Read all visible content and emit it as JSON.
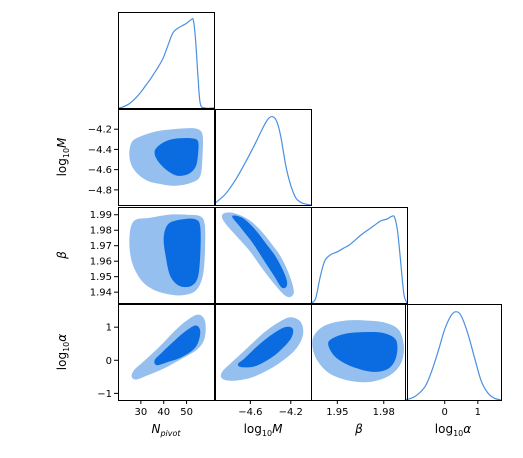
{
  "chart_data": {
    "type": "corner",
    "parameters": [
      {
        "key": "Npivot",
        "label_main": "N",
        "label_sub": "pivot",
        "label_style": "italic",
        "range": [
          20,
          62
        ],
        "ticks": [
          30,
          40,
          50
        ],
        "tick_labels": [
          "30",
          "40",
          "50"
        ]
      },
      {
        "key": "log10M",
        "label_main": "log",
        "label_sub": "10",
        "label_tail": "M",
        "range": [
          -4.95,
          -4.0
        ],
        "ticks": [
          -4.8,
          -4.6,
          -4.4,
          -4.2
        ],
        "tick_labels": [
          "−4.8",
          "−4.6",
          "−4.4",
          "−4.2"
        ],
        "x_ticks": [
          -4.6,
          -4.2
        ],
        "x_tick_labels": [
          "−4.6",
          "−4.2"
        ]
      },
      {
        "key": "beta",
        "label_main": "β",
        "label_style": "italic",
        "range": [
          1.933,
          1.995
        ],
        "ticks": [
          1.94,
          1.95,
          1.96,
          1.97,
          1.98,
          1.99
        ],
        "tick_labels": [
          "1.94",
          "1.95",
          "1.96",
          "1.97",
          "1.98",
          "1.99"
        ],
        "x_ticks": [
          1.95,
          1.98
        ],
        "x_tick_labels": [
          "1.95",
          "1.98"
        ]
      },
      {
        "key": "log10alpha",
        "label_main": "log",
        "label_sub": "10",
        "label_tail": "α",
        "range": [
          -1.2,
          1.7
        ],
        "ticks": [
          -1,
          0,
          1
        ],
        "tick_labels": [
          "−1",
          "0",
          "1"
        ],
        "x_ticks": [
          0,
          1
        ],
        "x_tick_labels": [
          "0",
          "1"
        ]
      }
    ],
    "colors": {
      "inner_contour": "#0a6ce0",
      "outer_contour": "#94bfef",
      "line": "#4a90e2",
      "frame": "#000000"
    },
    "marginals": [
      {
        "param": "Npivot",
        "x": [
          20,
          22,
          25,
          28,
          30,
          32,
          34,
          36,
          38,
          40,
          42,
          44,
          46,
          48,
          50,
          52,
          53,
          54,
          55,
          56,
          58,
          62
        ],
        "y": [
          0,
          0.01,
          0.05,
          0.12,
          0.18,
          0.25,
          0.32,
          0.4,
          0.48,
          0.58,
          0.72,
          0.85,
          0.9,
          0.93,
          0.96,
          1.0,
          0.99,
          0.75,
          0.35,
          0.05,
          0,
          0
        ]
      },
      {
        "param": "log10M",
        "x": [
          -4.95,
          -4.85,
          -4.75,
          -4.65,
          -4.55,
          -4.5,
          -4.45,
          -4.42,
          -4.38,
          -4.34,
          -4.3,
          -4.25,
          -4.2,
          -4.15,
          -4.1,
          -4.05,
          -4.0
        ],
        "y": [
          0.02,
          0.12,
          0.28,
          0.48,
          0.7,
          0.82,
          0.93,
          0.98,
          1.0,
          0.95,
          0.78,
          0.45,
          0.22,
          0.08,
          0.03,
          0.01,
          0
        ]
      },
      {
        "param": "beta",
        "x": [
          1.933,
          1.936,
          1.939,
          1.942,
          1.946,
          1.95,
          1.954,
          1.958,
          1.962,
          1.966,
          1.97,
          1.974,
          1.978,
          1.982,
          1.985,
          1.987,
          1.989,
          1.991,
          1.993,
          1.995
        ],
        "y": [
          0,
          0.05,
          0.3,
          0.48,
          0.55,
          0.58,
          0.62,
          0.66,
          0.72,
          0.78,
          0.83,
          0.88,
          0.93,
          0.95,
          0.98,
          0.97,
          0.8,
          0.45,
          0.1,
          0
        ]
      },
      {
        "param": "log10alpha",
        "x": [
          -1.2,
          -0.9,
          -0.6,
          -0.4,
          -0.2,
          0,
          0.2,
          0.35,
          0.5,
          0.7,
          0.9,
          1.1,
          1.3,
          1.5,
          1.7
        ],
        "y": [
          0.0,
          0.04,
          0.15,
          0.32,
          0.55,
          0.8,
          0.96,
          1.0,
          0.95,
          0.75,
          0.48,
          0.22,
          0.08,
          0.02,
          0.0
        ]
      }
    ],
    "joint": [
      {
        "x_param": "Npivot",
        "y_param": "log10M",
        "outer": [
          [
            26,
            -4.33
          ],
          [
            30,
            -4.27
          ],
          [
            37,
            -4.22
          ],
          [
            44,
            -4.2
          ],
          [
            50,
            -4.19
          ],
          [
            55,
            -4.2
          ],
          [
            57,
            -4.26
          ],
          [
            57,
            -4.45
          ],
          [
            56,
            -4.66
          ],
          [
            52,
            -4.73
          ],
          [
            45,
            -4.76
          ],
          [
            38,
            -4.74
          ],
          [
            32,
            -4.7
          ],
          [
            27,
            -4.6
          ],
          [
            25,
            -4.47
          ]
        ],
        "inner": [
          [
            38,
            -4.36
          ],
          [
            42,
            -4.31
          ],
          [
            47,
            -4.29
          ],
          [
            52,
            -4.29
          ],
          [
            55,
            -4.32
          ],
          [
            55,
            -4.45
          ],
          [
            54,
            -4.57
          ],
          [
            51,
            -4.64
          ],
          [
            46,
            -4.66
          ],
          [
            41,
            -4.6
          ],
          [
            37,
            -4.5
          ],
          [
            36,
            -4.42
          ]
        ]
      },
      {
        "x_param": "Npivot",
        "y_param": "beta",
        "outer": [
          [
            27,
            1.986
          ],
          [
            34,
            1.988
          ],
          [
            42,
            1.99
          ],
          [
            50,
            1.99
          ],
          [
            56,
            1.989
          ],
          [
            58,
            1.983
          ],
          [
            58,
            1.965
          ],
          [
            57,
            1.95
          ],
          [
            54,
            1.941
          ],
          [
            48,
            1.938
          ],
          [
            41,
            1.939
          ],
          [
            35,
            1.942
          ],
          [
            30,
            1.948
          ],
          [
            26,
            1.96
          ],
          [
            25,
            1.975
          ]
        ],
        "inner": [
          [
            42,
            1.984
          ],
          [
            48,
            1.987
          ],
          [
            54,
            1.987
          ],
          [
            56,
            1.982
          ],
          [
            56,
            1.965
          ],
          [
            55,
            1.95
          ],
          [
            52,
            1.944
          ],
          [
            47,
            1.944
          ],
          [
            43,
            1.95
          ],
          [
            41,
            1.962
          ],
          [
            40,
            1.975
          ]
        ]
      },
      {
        "x_param": "Npivot",
        "y_param": "log10alpha",
        "outer": [
          [
            26,
            -0.5
          ],
          [
            28,
            -0.58
          ],
          [
            33,
            -0.45
          ],
          [
            40,
            -0.25
          ],
          [
            48,
            0.05
          ],
          [
            55,
            0.35
          ],
          [
            58,
            0.7
          ],
          [
            58,
            1.2
          ],
          [
            55,
            1.38
          ],
          [
            50,
            1.2
          ],
          [
            45,
            0.9
          ],
          [
            38,
            0.4
          ],
          [
            31,
            -0.05
          ],
          [
            27,
            -0.3
          ]
        ],
        "inner": [
          [
            37,
            -0.15
          ],
          [
            42,
            -0.05
          ],
          [
            48,
            0.1
          ],
          [
            54,
            0.4
          ],
          [
            56,
            0.85
          ],
          [
            54,
            1.05
          ],
          [
            49,
            0.85
          ],
          [
            44,
            0.55
          ],
          [
            39,
            0.22
          ],
          [
            36,
            0.0
          ]
        ]
      },
      {
        "x_param": "log10M",
        "y_param": "beta",
        "outer": [
          [
            -4.86,
            1.991
          ],
          [
            -4.76,
            1.991
          ],
          [
            -4.62,
            1.987
          ],
          [
            -4.5,
            1.98
          ],
          [
            -4.4,
            1.972
          ],
          [
            -4.3,
            1.963
          ],
          [
            -4.22,
            1.952
          ],
          [
            -4.17,
            1.941
          ],
          [
            -4.2,
            1.937
          ],
          [
            -4.26,
            1.938
          ],
          [
            -4.36,
            1.945
          ],
          [
            -4.48,
            1.955
          ],
          [
            -4.6,
            1.966
          ],
          [
            -4.72,
            1.975
          ],
          [
            -4.83,
            1.983
          ],
          [
            -4.88,
            1.988
          ]
        ],
        "inner": [
          [
            -4.78,
            1.989
          ],
          [
            -4.68,
            1.988
          ],
          [
            -4.56,
            1.981
          ],
          [
            -4.44,
            1.971
          ],
          [
            -4.34,
            1.962
          ],
          [
            -4.25,
            1.95
          ],
          [
            -4.24,
            1.944
          ],
          [
            -4.29,
            1.943
          ],
          [
            -4.36,
            1.95
          ],
          [
            -4.46,
            1.96
          ],
          [
            -4.58,
            1.972
          ],
          [
            -4.7,
            1.982
          ]
        ]
      },
      {
        "x_param": "log10M",
        "y_param": "log10alpha",
        "outer": [
          [
            -4.88,
            -0.55
          ],
          [
            -4.78,
            -0.62
          ],
          [
            -4.62,
            -0.55
          ],
          [
            -4.48,
            -0.38
          ],
          [
            -4.32,
            -0.1
          ],
          [
            -4.16,
            0.3
          ],
          [
            -4.08,
            0.75
          ],
          [
            -4.1,
            1.15
          ],
          [
            -4.2,
            1.3
          ],
          [
            -4.32,
            1.15
          ],
          [
            -4.46,
            0.85
          ],
          [
            -4.62,
            0.4
          ],
          [
            -4.78,
            -0.05
          ],
          [
            -4.88,
            -0.35
          ]
        ],
        "inner": [
          [
            -4.7,
            -0.2
          ],
          [
            -4.58,
            -0.2
          ],
          [
            -4.46,
            -0.05
          ],
          [
            -4.32,
            0.25
          ],
          [
            -4.2,
            0.65
          ],
          [
            -4.18,
            0.95
          ],
          [
            -4.26,
            1.0
          ],
          [
            -4.4,
            0.75
          ],
          [
            -4.54,
            0.4
          ],
          [
            -4.66,
            0.05
          ],
          [
            -4.72,
            -0.1
          ]
        ]
      },
      {
        "x_param": "beta",
        "y_param": "log10alpha",
        "outer": [
          [
            1.935,
            0.75
          ],
          [
            1.942,
            1.05
          ],
          [
            1.955,
            1.2
          ],
          [
            1.97,
            1.2
          ],
          [
            1.982,
            1.12
          ],
          [
            1.99,
            0.9
          ],
          [
            1.993,
            0.4
          ],
          [
            1.991,
            -0.1
          ],
          [
            1.984,
            -0.45
          ],
          [
            1.972,
            -0.65
          ],
          [
            1.958,
            -0.62
          ],
          [
            1.945,
            -0.4
          ],
          [
            1.937,
            0.0
          ],
          [
            1.934,
            0.4
          ]
        ],
        "inner": [
          [
            1.945,
            0.6
          ],
          [
            1.955,
            0.8
          ],
          [
            1.968,
            0.85
          ],
          [
            1.98,
            0.82
          ],
          [
            1.988,
            0.6
          ],
          [
            1.988,
            0.1
          ],
          [
            1.983,
            -0.25
          ],
          [
            1.973,
            -0.35
          ],
          [
            1.96,
            -0.2
          ],
          [
            1.95,
            0.05
          ],
          [
            1.945,
            0.35
          ]
        ]
      }
    ]
  }
}
